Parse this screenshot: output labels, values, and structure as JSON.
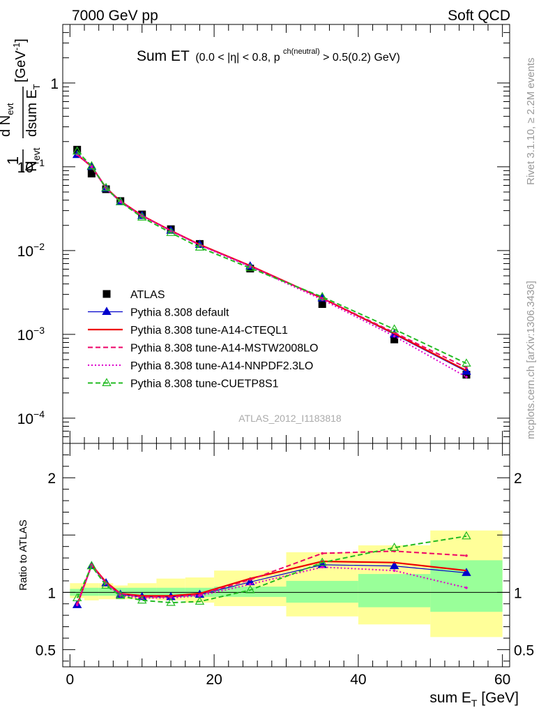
{
  "header": {
    "left": "7000 GeV pp",
    "right": "Soft QCD"
  },
  "side_texts": {
    "rivet": "Rivet 3.1.10, ≥ 2.2M events",
    "mcplots": "mcplots.cern.ch [arXiv:1306.3436]"
  },
  "chart_data": [
    {
      "type": "line",
      "panel": "main",
      "title_main": "Sum ET",
      "title_cut_a": "(0.0 < |η| < 0.8, p",
      "title_cut_sup": "ch(neutral)",
      "title_cut_b": " > 0.5(0.2) GeV)",
      "ylabel_frac": "1",
      "ylabel_num": "d N",
      "ylabel_num_sub": "evt",
      "ylabel_den1": "N",
      "ylabel_den1_sub": "evt",
      "ylabel_den2": "dsum E",
      "ylabel_den2_sub": "T",
      "ylabel_unit": "[GeV",
      "ylabel_unit_sup": "-1",
      "ylabel_unit_close": "]",
      "yscale": "log",
      "xlim": [
        -1,
        61
      ],
      "ylim": [
        5e-05,
        5
      ],
      "y_tick_labels": [
        {
          "value": 1,
          "label": "1"
        },
        {
          "value": 0.1,
          "label": "10",
          "exp": "−1"
        },
        {
          "value": 0.01,
          "label": "10",
          "exp": "−2"
        },
        {
          "value": 0.001,
          "label": "10",
          "exp": "−3"
        },
        {
          "value": 0.0001,
          "label": "10",
          "exp": "−4"
        }
      ],
      "watermark": "ATLAS_2012_I1183818",
      "legend_position": "bottom-left",
      "series": [
        {
          "name": "ATLAS",
          "style": "data",
          "color": "#000000",
          "x": [
            1,
            3,
            5,
            7,
            10,
            14,
            18,
            25,
            35,
            45,
            55
          ],
          "y": [
            0.16,
            0.083,
            0.054,
            0.039,
            0.027,
            0.018,
            0.012,
            0.0061,
            0.0023,
            0.00087,
            0.00033
          ]
        },
        {
          "name": "Pythia 8.308 default",
          "style": "solid-tri",
          "color": "#0000cc",
          "x": [
            1,
            3,
            5,
            7,
            10,
            14,
            18,
            25,
            35,
            45,
            55
          ],
          "y": [
            0.139,
            0.1,
            0.055,
            0.038,
            0.026,
            0.0173,
            0.01175,
            0.0065,
            0.0027,
            0.001,
            0.00036
          ]
        },
        {
          "name": "Pythia 8.308 tune-A14-CTEQL1",
          "style": "solid",
          "color": "#ee0000",
          "x": [
            1,
            3,
            5,
            7,
            10,
            14,
            18,
            25,
            35,
            45,
            55
          ],
          "y": [
            0.139,
            0.101,
            0.0562,
            0.0389,
            0.0262,
            0.0173,
            0.0118,
            0.0066,
            0.0027,
            0.00102,
            0.00037
          ]
        },
        {
          "name": "Pythia 8.308 tune-A14-MSTW2008LO",
          "style": "dashed",
          "color": "#ee0066",
          "x": [
            1,
            3,
            5,
            7,
            10,
            14,
            18,
            25,
            35,
            45,
            55
          ],
          "y": [
            0.14,
            0.102,
            0.0563,
            0.039,
            0.0262,
            0.0174,
            0.0117,
            0.0066,
            0.0027,
            0.00105,
            0.0004
          ]
        },
        {
          "name": "Pythia 8.308 tune-A14-NNPDF2.3LO",
          "style": "dotted",
          "color": "#dd00cc",
          "x": [
            1,
            3,
            5,
            7,
            10,
            14,
            18,
            25,
            35,
            45,
            55
          ],
          "y": [
            0.14,
            0.1,
            0.055,
            0.038,
            0.0258,
            0.0171,
            0.0116,
            0.0064,
            0.0026,
            0.00095,
            0.00031
          ]
        },
        {
          "name": "Pythia 8.308 tune-CUETP8S1",
          "style": "dashed-tri",
          "color": "#22bb22",
          "x": [
            1,
            3,
            5,
            7,
            10,
            14,
            18,
            25,
            35,
            45,
            55
          ],
          "y": [
            0.153,
            0.102,
            0.056,
            0.038,
            0.0249,
            0.0163,
            0.0109,
            0.0062,
            0.0028,
            0.00115,
            0.00045
          ]
        }
      ]
    },
    {
      "type": "line",
      "panel": "ratio",
      "ylabel": "Ratio to ATLAS",
      "xlabel_main": "sum E",
      "xlabel_sub": "T",
      "xlabel_unit": " [GeV]",
      "xlim": [
        -1,
        61
      ],
      "ylim": [
        0.35,
        2.3
      ],
      "x_ticks": [
        0,
        20,
        40,
        60
      ],
      "y_tick_labels": [
        {
          "value": 2,
          "label": "2"
        },
        {
          "value": 1,
          "label": "1"
        },
        {
          "value": 0.5,
          "label": "0.5"
        }
      ],
      "bands": [
        {
          "x0": 0,
          "x1": 2,
          "inner": [
            0.97,
            1.03
          ],
          "outer": [
            0.95,
            1.08
          ]
        },
        {
          "x0": 2,
          "x1": 4,
          "inner": [
            0.97,
            1.04
          ],
          "outer": [
            0.93,
            1.08
          ]
        },
        {
          "x0": 4,
          "x1": 6,
          "inner": [
            0.97,
            1.04
          ],
          "outer": [
            0.94,
            1.08
          ]
        },
        {
          "x0": 6,
          "x1": 8,
          "inner": [
            0.97,
            1.04
          ],
          "outer": [
            0.94,
            1.06
          ]
        },
        {
          "x0": 8,
          "x1": 12,
          "inner": [
            0.97,
            1.04
          ],
          "outer": [
            0.94,
            1.08
          ]
        },
        {
          "x0": 12,
          "x1": 16,
          "inner": [
            0.96,
            1.04
          ],
          "outer": [
            0.93,
            1.12
          ]
        },
        {
          "x0": 16,
          "x1": 20,
          "inner": [
            0.96,
            1.04
          ],
          "outer": [
            0.91,
            1.13
          ]
        },
        {
          "x0": 20,
          "x1": 30,
          "inner": [
            0.96,
            1.05
          ],
          "outer": [
            0.88,
            1.19
          ]
        },
        {
          "x0": 30,
          "x1": 40,
          "inner": [
            0.91,
            1.1
          ],
          "outer": [
            0.79,
            1.35
          ]
        },
        {
          "x0": 40,
          "x1": 50,
          "inner": [
            0.87,
            1.16
          ],
          "outer": [
            0.72,
            1.41
          ]
        },
        {
          "x0": 50,
          "x1": 60,
          "inner": [
            0.83,
            1.28
          ],
          "outer": [
            0.61,
            1.54
          ]
        }
      ],
      "series": [
        {
          "name": "Pythia 8.308 default",
          "style": "solid-tri",
          "color": "#0000cc",
          "x": [
            1,
            3,
            5,
            7,
            10,
            14,
            18,
            25,
            35,
            45,
            55
          ],
          "y": [
            0.89,
            1.23,
            1.08,
            0.98,
            0.96,
            0.96,
            0.98,
            1.09,
            1.24,
            1.23,
            1.17
          ]
        },
        {
          "name": "Pythia 8.308 tune-A14-CTEQL1",
          "style": "solid",
          "color": "#ee0000",
          "x": [
            1,
            3,
            5,
            7,
            10,
            14,
            18,
            25,
            35,
            45,
            55
          ],
          "y": [
            0.89,
            1.24,
            1.09,
            0.99,
            0.97,
            0.97,
            0.99,
            1.12,
            1.27,
            1.26,
            1.19
          ]
        },
        {
          "name": "Pythia 8.308 tune-A14-MSTW2008LO",
          "style": "dashed",
          "color": "#ee0066",
          "x": [
            1,
            3,
            5,
            7,
            10,
            14,
            18,
            25,
            35,
            45,
            55
          ],
          "y": [
            0.9,
            1.24,
            1.08,
            0.99,
            0.96,
            0.96,
            0.98,
            1.11,
            1.34,
            1.36,
            1.32
          ]
        },
        {
          "name": "Pythia 8.308 tune-A14-NNPDF2.3LO",
          "style": "dotted",
          "color": "#dd00cc",
          "x": [
            1,
            3,
            5,
            7,
            10,
            14,
            18,
            25,
            35,
            45,
            55
          ],
          "y": [
            0.89,
            1.23,
            1.08,
            0.97,
            0.95,
            0.95,
            0.97,
            1.07,
            1.22,
            1.19,
            1.04
          ]
        },
        {
          "name": "Pythia 8.308 tune-CUETP8S1",
          "style": "dashed-tri",
          "color": "#22bb22",
          "x": [
            1,
            3,
            5,
            7,
            10,
            14,
            18,
            25,
            35,
            45,
            55
          ],
          "y": [
            0.95,
            1.23,
            1.06,
            0.97,
            0.93,
            0.91,
            0.92,
            1.02,
            1.26,
            1.39,
            1.49
          ]
        }
      ]
    }
  ]
}
